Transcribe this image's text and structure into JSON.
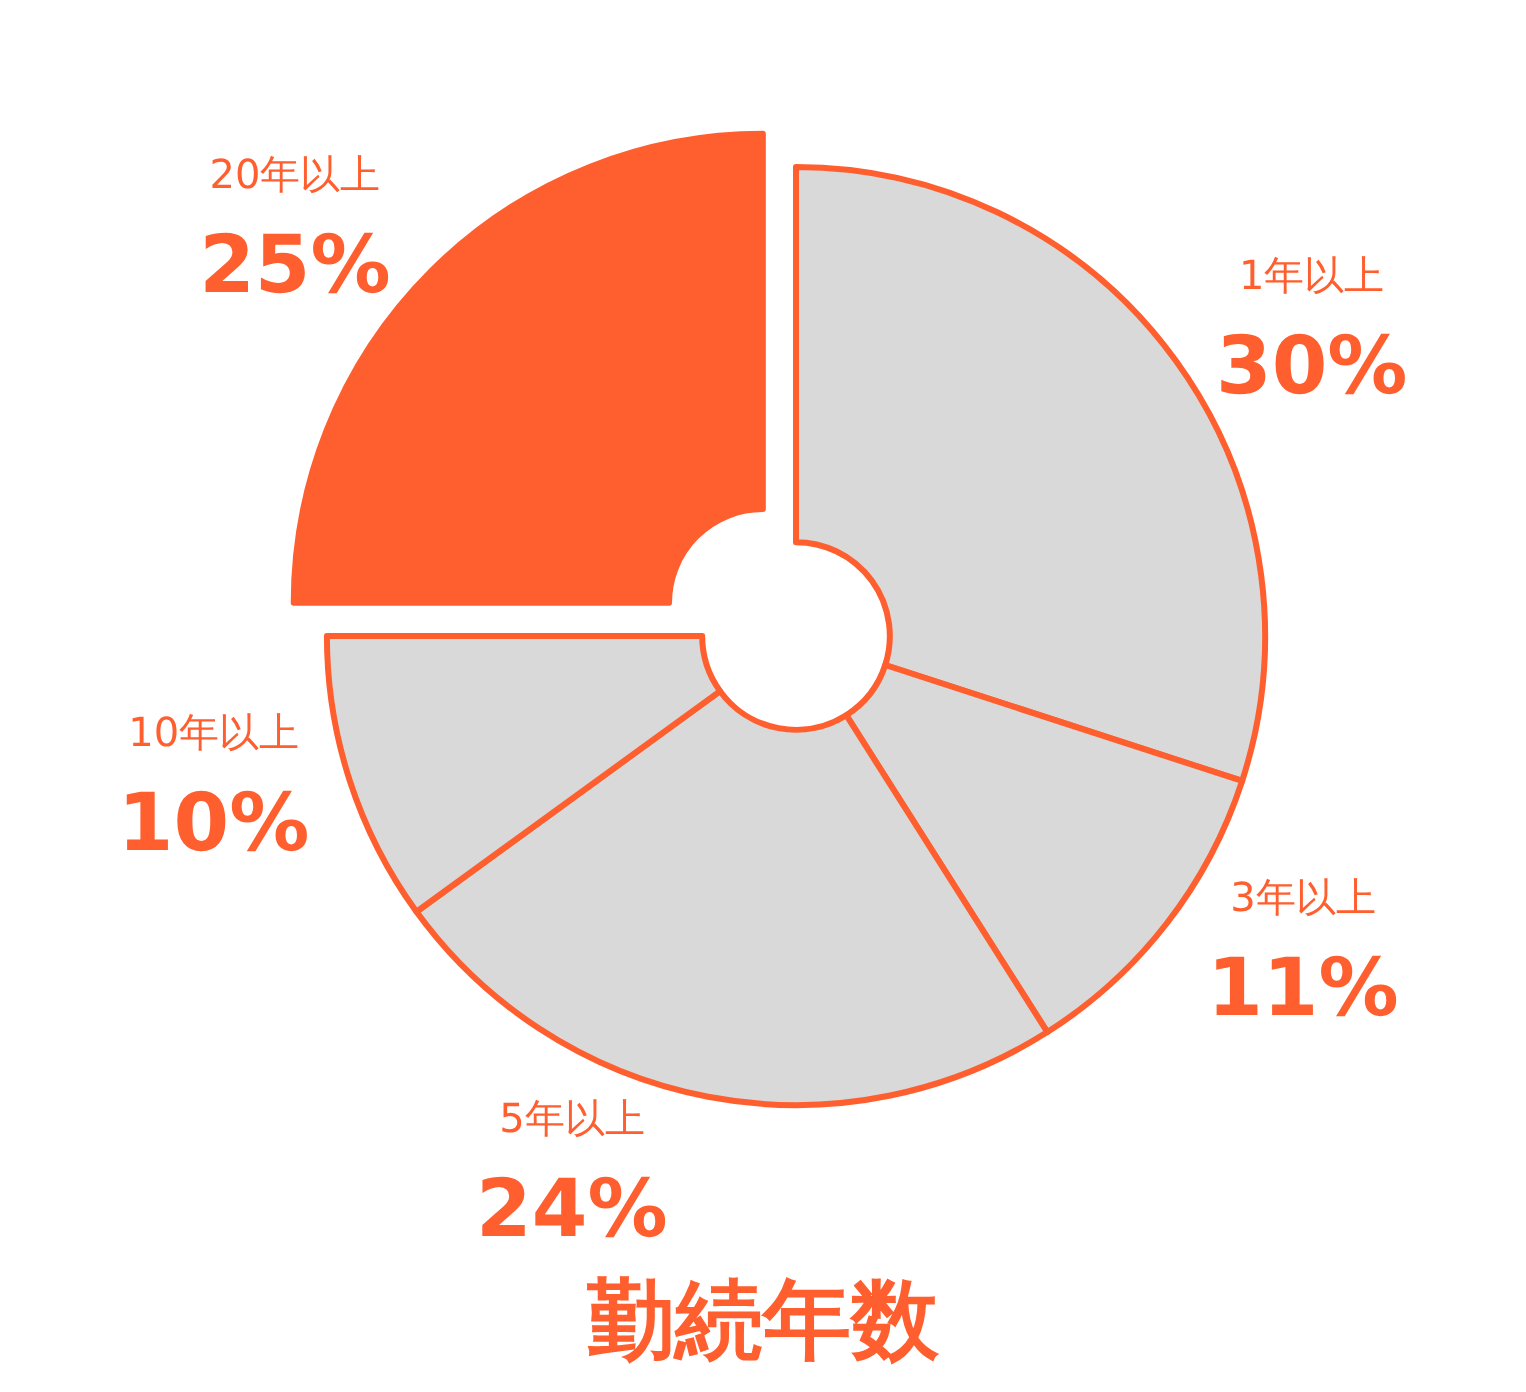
{
  "chart_data": {
    "type": "donut",
    "title": "勤続年数",
    "categories": [
      "1年以上",
      "3年以上",
      "5年以上",
      "10年以上",
      "20年以上"
    ],
    "values": [
      30,
      11,
      24,
      10,
      25
    ],
    "value_labels": [
      "30%",
      "11%",
      "24%",
      "10%",
      "25%"
    ],
    "colors": [
      "#d9d9d9",
      "#d9d9d9",
      "#d9d9d9",
      "#d9d9d9",
      "#ff5f2e"
    ]
  }
}
